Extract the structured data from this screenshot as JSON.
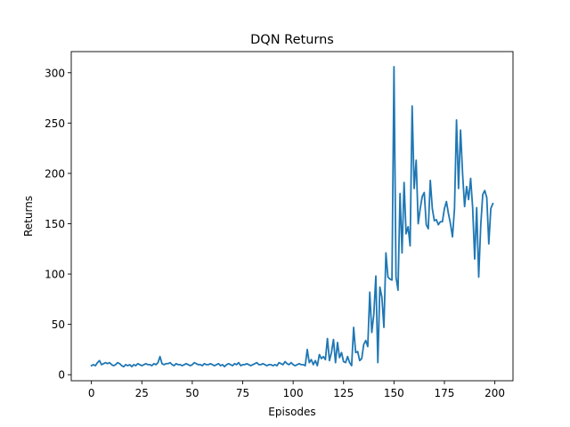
{
  "chart_data": {
    "type": "line",
    "title": "DQN Returns",
    "xlabel": "Episodes",
    "ylabel": "Returns",
    "xlim": [
      -10,
      209
    ],
    "ylim": [
      -6,
      321
    ],
    "xticks": [
      0,
      25,
      50,
      75,
      100,
      125,
      150,
      175,
      200
    ],
    "yticks": [
      0,
      50,
      100,
      150,
      200,
      250,
      300
    ],
    "grid": false,
    "legend": "none",
    "line_color": "#1f77b4",
    "series": [
      {
        "x": [
          0,
          1,
          2,
          3,
          4,
          5,
          6,
          7,
          8,
          9,
          10,
          11,
          12,
          13,
          14,
          15,
          16,
          17,
          18,
          19,
          20,
          21,
          22,
          23,
          24,
          25,
          26,
          27,
          28,
          29,
          30,
          31,
          32,
          33,
          34,
          35,
          36,
          37,
          38,
          39,
          40,
          41,
          42,
          43,
          44,
          45,
          46,
          47,
          48,
          49,
          50,
          51,
          52,
          53,
          54,
          55,
          56,
          57,
          58,
          59,
          60,
          61,
          62,
          63,
          64,
          65,
          66,
          67,
          68,
          69,
          70,
          71,
          72,
          73,
          74,
          75,
          76,
          77,
          78,
          79,
          80,
          81,
          82,
          83,
          84,
          85,
          86,
          87,
          88,
          89,
          90,
          91,
          92,
          93,
          94,
          95,
          96,
          97,
          98,
          99,
          100,
          101,
          102,
          103,
          104,
          105,
          106,
          107,
          108,
          109,
          110,
          111,
          112,
          113,
          114,
          115,
          116,
          117,
          118,
          119,
          120,
          121,
          122,
          123,
          124,
          125,
          126,
          127,
          128,
          129,
          130,
          131,
          132,
          133,
          134,
          135,
          136,
          137,
          138,
          139,
          140,
          141,
          142,
          143,
          144,
          145,
          146,
          147,
          148,
          149,
          150,
          151,
          152,
          153,
          154,
          155,
          156,
          157,
          158,
          159,
          160,
          161,
          162,
          163,
          164,
          165,
          166,
          167,
          168,
          169,
          170,
          171,
          172,
          173,
          174,
          175,
          176,
          177,
          178,
          179,
          180,
          181,
          182,
          183,
          184,
          185,
          186,
          187,
          188,
          189,
          190,
          191,
          192,
          193,
          194,
          195,
          196,
          197,
          198,
          199
        ],
        "values": [
          9,
          10,
          9,
          12,
          14,
          10,
          11,
          12,
          11,
          12,
          10,
          9,
          10,
          12,
          11,
          9,
          8,
          10,
          9,
          10,
          8,
          10,
          9,
          11,
          10,
          9,
          10,
          11,
          10,
          10,
          9,
          11,
          10,
          12,
          18,
          11,
          10,
          11,
          11,
          12,
          10,
          9,
          11,
          10,
          10,
          9,
          10,
          11,
          10,
          9,
          10,
          12,
          11,
          10,
          10,
          9,
          11,
          10,
          10,
          11,
          10,
          9,
          10,
          11,
          9,
          10,
          8,
          10,
          11,
          10,
          9,
          11,
          10,
          12,
          9,
          10,
          10,
          11,
          10,
          9,
          10,
          11,
          12,
          10,
          10,
          11,
          10,
          9,
          10,
          10,
          9,
          10,
          9,
          12,
          11,
          10,
          13,
          11,
          10,
          12,
          10,
          9,
          10,
          11,
          10,
          10,
          9,
          25,
          12,
          15,
          10,
          14,
          9,
          20,
          16,
          18,
          15,
          36,
          14,
          22,
          35,
          12,
          32,
          17,
          22,
          13,
          12,
          18,
          12,
          9,
          47,
          22,
          23,
          14,
          16,
          30,
          34,
          28,
          82,
          42,
          60,
          98,
          12,
          87,
          77,
          47,
          121,
          97,
          95,
          94,
          306,
          97,
          84,
          180,
          121,
          191,
          140,
          147,
          128,
          267,
          185,
          213,
          150,
          165,
          177,
          181,
          149,
          145,
          193,
          165,
          153,
          154,
          149,
          152,
          152,
          165,
          172,
          160,
          150,
          137,
          165,
          253,
          185,
          243,
          200,
          167,
          187,
          174,
          195,
          166,
          115,
          166,
          97,
          148,
          179,
          183,
          176,
          130,
          165,
          170
        ]
      }
    ]
  }
}
